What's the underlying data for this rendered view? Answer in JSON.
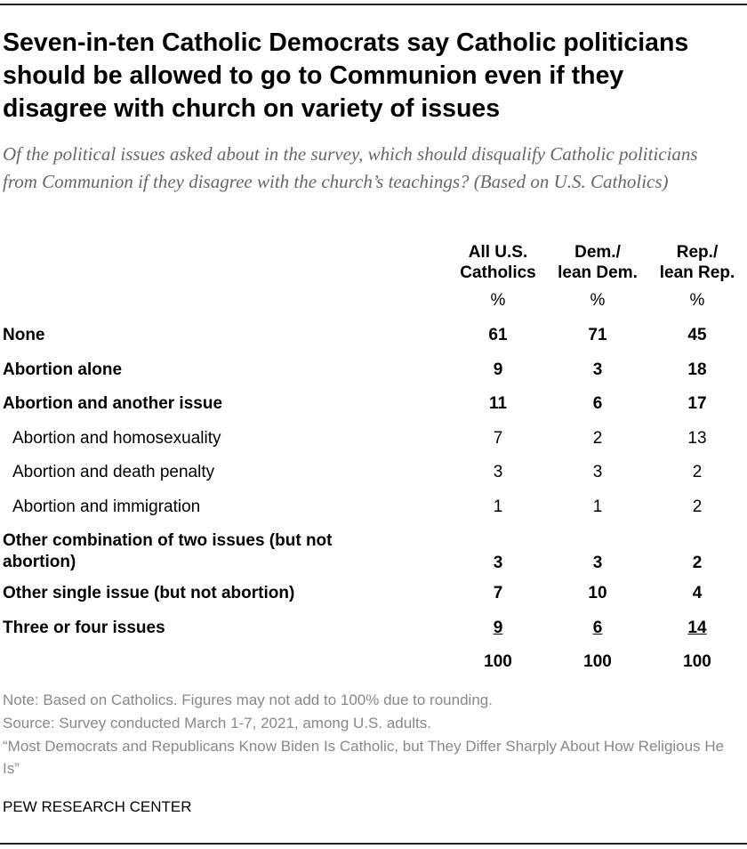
{
  "header": {
    "title": "Seven-in-ten Catholic Democrats say Catholic politicians should be allowed to go to Communion even if they disagree with church on variety of issues",
    "subtitle": "Of the political issues asked about in the survey, which should disqualify Catholic politicians from Communion if they disagree with the church’s teachings? (Based on U.S. Catholics)"
  },
  "table": {
    "columns": [
      [
        "All U.S.",
        "Catholics"
      ],
      [
        "Dem./",
        "lean Dem."
      ],
      [
        "Rep./",
        "lean Rep."
      ]
    ],
    "units": [
      "%",
      "%",
      "%"
    ],
    "rows": [
      {
        "label": "None",
        "values": [
          61,
          71,
          45
        ]
      },
      {
        "label": "Abortion alone",
        "values": [
          9,
          3,
          18
        ]
      },
      {
        "label": "Abortion and another issue",
        "values": [
          11,
          6,
          17
        ],
        "children": [
          {
            "label": "Abortion and homosexuality",
            "values": [
              7,
              2,
              13
            ]
          },
          {
            "label": "Abortion and death penalty",
            "values": [
              3,
              3,
              2
            ]
          },
          {
            "label": "Abortion and immigration",
            "values": [
              1,
              1,
              2
            ]
          }
        ]
      },
      {
        "label": "Other combination of two issues (but not abortion)",
        "values": [
          3,
          3,
          2
        ]
      },
      {
        "label": "Other single issue (but not abortion)",
        "values": [
          7,
          10,
          4
        ]
      },
      {
        "label": "Three or four issues",
        "values": [
          9,
          6,
          14
        ]
      }
    ],
    "total": [
      100,
      100,
      100
    ]
  },
  "footer": {
    "notes": [
      "Note: Based on Catholics. Figures may not add to 100% due to rounding.",
      "Source: Survey conducted March 1-7, 2021, among U.S. adults.",
      "“Most Democrats and Republicans Know Biden Is Catholic, but They Differ Sharply About How Religious He Is”"
    ],
    "brand": "PEW RESEARCH CENTER"
  }
}
